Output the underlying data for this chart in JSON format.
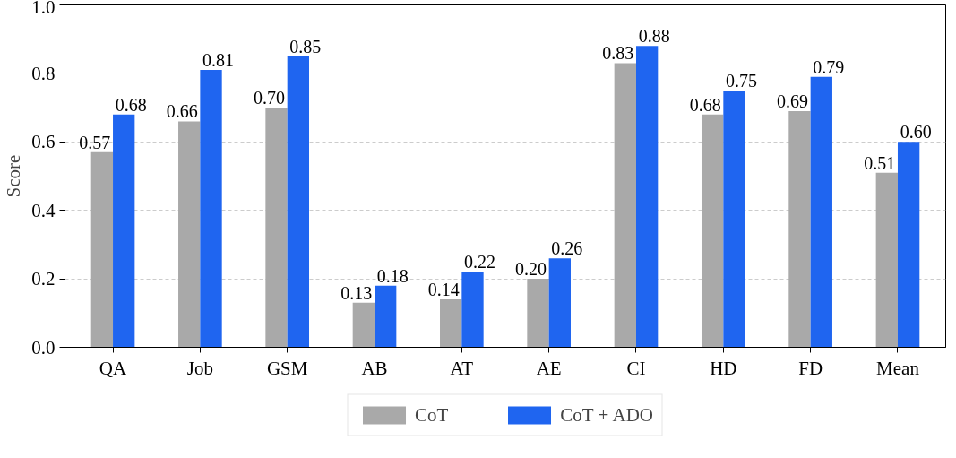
{
  "chart_data": {
    "type": "bar",
    "ylabel": "Score",
    "categories": [
      "QA",
      "Job",
      "GSM",
      "AB",
      "AT",
      "AE",
      "CI",
      "HD",
      "FD",
      "Mean"
    ],
    "series": [
      {
        "name": "CoT",
        "color": "#a9a9a9",
        "values": [
          0.57,
          0.66,
          0.7,
          0.13,
          0.14,
          0.2,
          0.83,
          0.68,
          0.69,
          0.51
        ],
        "value_labels": [
          "0.57",
          "0.66",
          "0.70",
          "0.13",
          "0.14",
          "0.20",
          "0.83",
          "0.68",
          "0.69",
          "0.51"
        ]
      },
      {
        "name": "CoT + ADO",
        "color": "#1f65f0",
        "values": [
          0.68,
          0.81,
          0.85,
          0.18,
          0.22,
          0.26,
          0.88,
          0.75,
          0.79,
          0.6
        ],
        "value_labels": [
          "0.68",
          "0.81",
          "0.85",
          "0.18",
          "0.22",
          "0.26",
          "0.88",
          "0.75",
          "0.79",
          "0.60"
        ]
      }
    ],
    "ylim": [
      0,
      1
    ],
    "yticks": [
      {
        "value": 0,
        "label": "0.0"
      },
      {
        "value": 0.2,
        "label": "0.2"
      },
      {
        "value": 0.4,
        "label": "0.4"
      },
      {
        "value": 0.6,
        "label": "0.6"
      },
      {
        "value": 0.8,
        "label": "0.8"
      },
      {
        "value": 1,
        "label": "1.0"
      }
    ],
    "grid": "y",
    "legend": "bottom"
  }
}
